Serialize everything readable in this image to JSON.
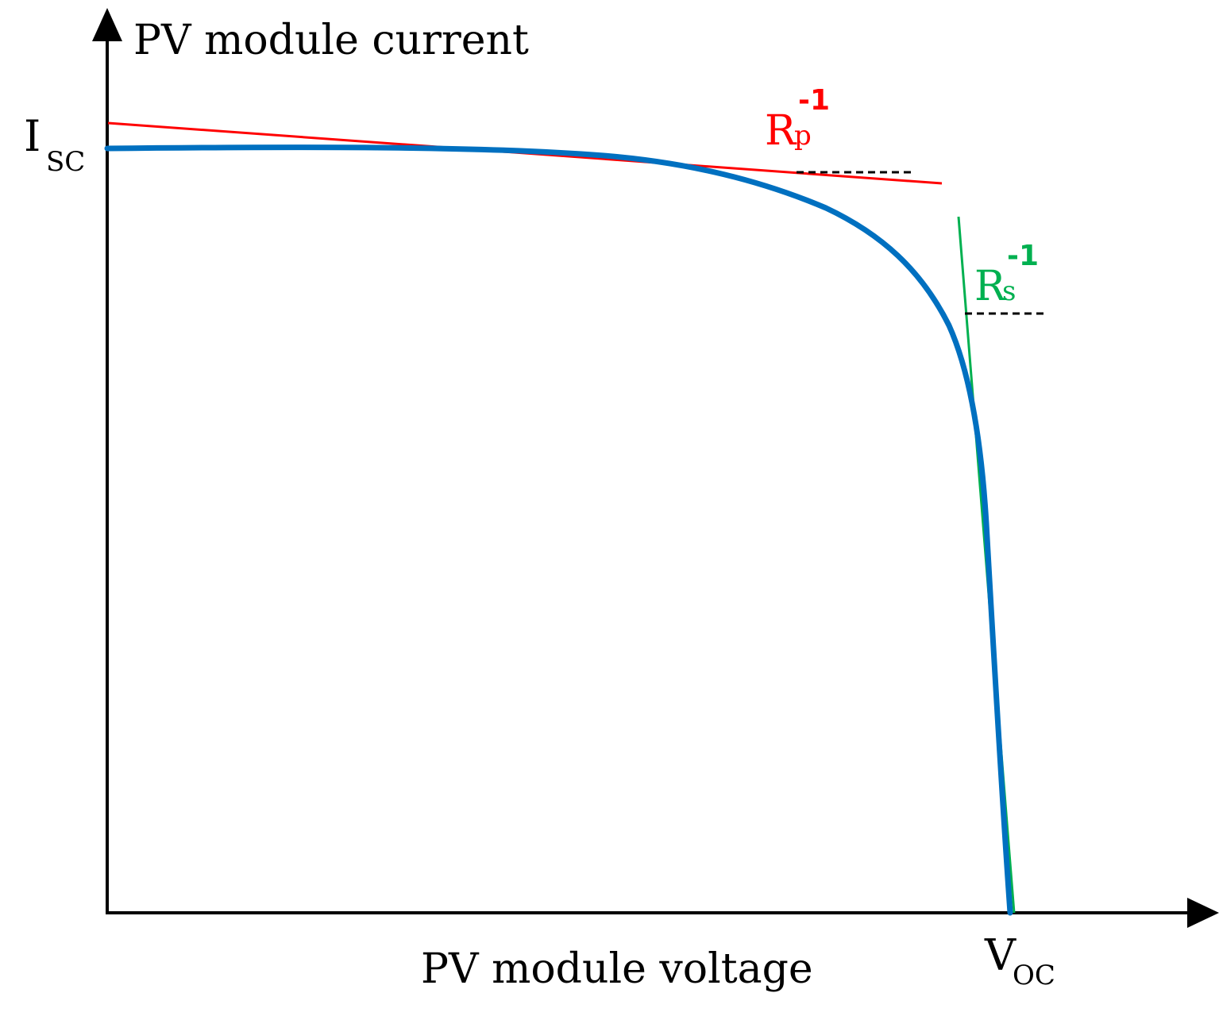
{
  "labels": {
    "y_axis": "PV module current",
    "x_axis": "PV module voltage",
    "isc_main": "I",
    "isc_sub": "SC",
    "voc_main": "V",
    "voc_sub": "OC",
    "rp_main": "R",
    "rp_sub": "p",
    "rp_sup": "-1",
    "rs_main": "R",
    "rs_sub": "s",
    "rs_sup": "-1"
  },
  "colors": {
    "axis": "#000000",
    "iv_curve": "#0070C0",
    "rp_tangent": "#FF0000",
    "rs_tangent": "#00B050",
    "dashed_guides": "#000000"
  }
}
